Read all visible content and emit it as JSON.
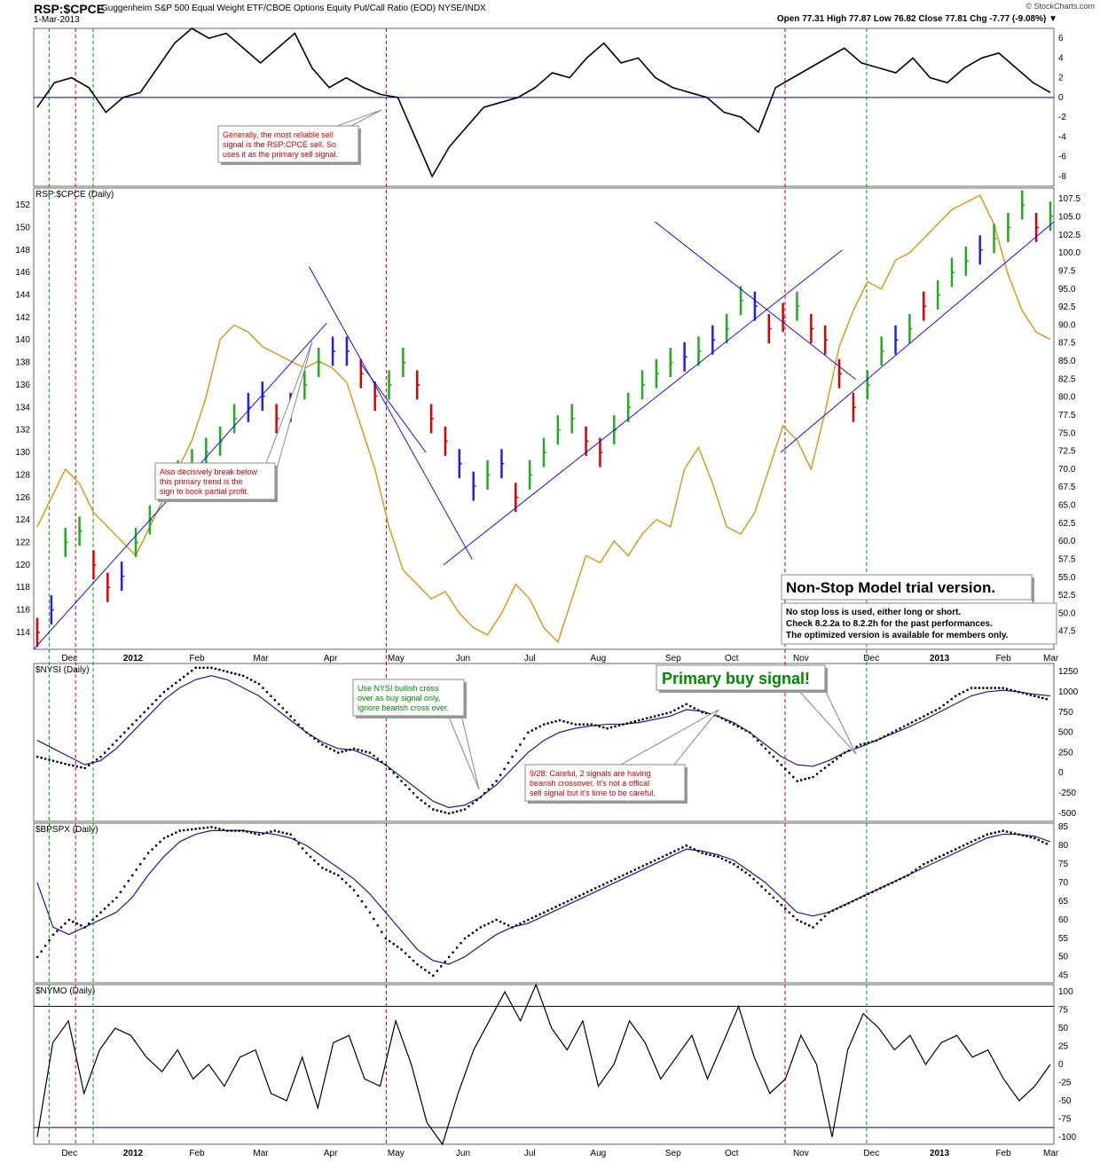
{
  "header": {
    "symbol": "RSP:$CPCE",
    "description": "Guggenheim S&P 500 Equal Weight ETF/CBOE Options Equity Put/Call Ratio (EOD)",
    "exchange": "NYSE/INDX",
    "date": "1-Mar-2013",
    "quote": "Open 77.31  High 77.87  Low 76.82  Close 77.81  Chg -7.77 (-9.08%) ▼",
    "logo": "© StockCharts.com"
  },
  "colors": {
    "up": "#22aa22",
    "down": "#dd0000",
    "neutral": "#2222dd",
    "overlay": "#d89a20",
    "trend": "#1515e0",
    "vline_red": "#cc0000",
    "vline_green": "#009900"
  },
  "x_labels": [
    "Dec",
    "2012",
    "Feb",
    "Mar",
    "Apr",
    "May",
    "Jun",
    "Jul",
    "Aug",
    "Sep",
    "Oct",
    "Nov",
    "Dec",
    "2013",
    "Feb",
    "Mar"
  ],
  "vlines": [
    {
      "color": "green",
      "date": "2011-12-01"
    },
    {
      "color": "red",
      "date": "2011-12-13"
    },
    {
      "color": "green",
      "date": "2011-12-21"
    },
    {
      "color": "red",
      "date": "2012-05-02"
    },
    {
      "color": "red",
      "date": "2012-10-30"
    },
    {
      "color": "green",
      "date": "2012-12-06"
    }
  ],
  "chart_data": [
    {
      "name": "oscillator",
      "type": "line",
      "title": "",
      "yticks": [
        6,
        4,
        2,
        0,
        -2,
        -4,
        -6,
        -8
      ],
      "ylim": [
        -9,
        7
      ],
      "zero_line": 0,
      "values": [
        -1,
        1.5,
        2,
        1,
        -1.5,
        0,
        0.5,
        3,
        5.5,
        7,
        6,
        6.5,
        5,
        3.5,
        5,
        6.5,
        3,
        1,
        2,
        1,
        0.3,
        0,
        -4,
        -8,
        -5,
        -3,
        -1,
        -0.5,
        0,
        1,
        2.5,
        2,
        4,
        5.5,
        3.5,
        4,
        2,
        1,
        0.5,
        0,
        -1.5,
        -2,
        -3.5,
        1,
        2,
        3,
        4,
        5,
        3.5,
        3,
        2.5,
        4,
        2,
        1.5,
        3,
        4,
        4.5,
        3,
        1.5,
        0.5
      ]
    },
    {
      "name": "price",
      "type": "bar",
      "title": "RSP:$CPCE (Daily)",
      "y_left_ticks": [
        152,
        150,
        148,
        146,
        144,
        142,
        140,
        138,
        136,
        134,
        132,
        130,
        128,
        126,
        124,
        122,
        120,
        118,
        116,
        114
      ],
      "y_right_ticks": [
        "107.5",
        "105.0",
        "102.5",
        "100.0",
        "97.5",
        "95.0",
        "92.5",
        "90.0",
        "87.5",
        "85.0",
        "82.5",
        "80.0",
        "77.5",
        "75.0",
        "72.5",
        "70.0",
        "67.5",
        "65.0",
        "62.5",
        "60.0",
        "57.5",
        "55.0",
        "52.5",
        "50.0",
        "47.5"
      ],
      "ylim_left": [
        112.5,
        153.5
      ],
      "ylim_right": [
        45,
        109
      ],
      "values": [
        114,
        116,
        122,
        123,
        120,
        118,
        119,
        122,
        124,
        127,
        128,
        129,
        130,
        131,
        133,
        134,
        135,
        133,
        134,
        136,
        138,
        139,
        139,
        137,
        135,
        136,
        138,
        136,
        133,
        131,
        129,
        127,
        128,
        129,
        126,
        128,
        130,
        132,
        133,
        131,
        130,
        132,
        134,
        136,
        137,
        138,
        138.5,
        139,
        140,
        141,
        143.5,
        143,
        141,
        142,
        143,
        141,
        140,
        137,
        134,
        136,
        139,
        140,
        141,
        143,
        144,
        146,
        147,
        148,
        149,
        150,
        152,
        150,
        151
      ],
      "colors": [
        "d",
        "n",
        "u",
        "u",
        "d",
        "d",
        "n",
        "u",
        "u",
        "u",
        "u",
        "u",
        "u",
        "u",
        "u",
        "n",
        "n",
        "d",
        "n",
        "u",
        "u",
        "n",
        "n",
        "d",
        "d",
        "u",
        "u",
        "d",
        "d",
        "d",
        "n",
        "n",
        "u",
        "n",
        "d",
        "u",
        "u",
        "u",
        "u",
        "d",
        "d",
        "u",
        "u",
        "u",
        "u",
        "u",
        "n",
        "u",
        "n",
        "u",
        "u",
        "n",
        "d",
        "d",
        "u",
        "d",
        "d",
        "d",
        "d",
        "u",
        "u",
        "n",
        "u",
        "d",
        "u",
        "u",
        "u",
        "n",
        "u",
        "u",
        "u",
        "d",
        "u"
      ]
    },
    {
      "name": "cpce_overlay",
      "type": "line",
      "title": "",
      "values": [
        62,
        66,
        70,
        68,
        64,
        62,
        60,
        58,
        62,
        66,
        70,
        74,
        80,
        88,
        90,
        89,
        87,
        86,
        85,
        84,
        85,
        84,
        82,
        76,
        70,
        62,
        56,
        54,
        52,
        53,
        50,
        48,
        47,
        50,
        54,
        52,
        48,
        46,
        52,
        58,
        57,
        60,
        58,
        61,
        63,
        62,
        70,
        73,
        68,
        62,
        61,
        64,
        70,
        76,
        74,
        70,
        78,
        87,
        92,
        96,
        95,
        99,
        100,
        102,
        104,
        106,
        107,
        108,
        104,
        97,
        92,
        89,
        88
      ]
    },
    {
      "name": "nysi",
      "type": "scatter",
      "title": "$NYSI (Daily)",
      "yticks": [
        1250,
        1000,
        750,
        500,
        250,
        0,
        -250,
        -500
      ],
      "ylim": [
        -600,
        1350
      ],
      "values": [
        200,
        150,
        100,
        60,
        200,
        400,
        600,
        800,
        1000,
        1150,
        1300,
        1300,
        1250,
        1200,
        1100,
        900,
        700,
        500,
        350,
        250,
        300,
        250,
        100,
        -100,
        -300,
        -450,
        -500,
        -450,
        -300,
        -100,
        200,
        500,
        600,
        650,
        600,
        600,
        550,
        600,
        650,
        700,
        750,
        850,
        750,
        700,
        600,
        500,
        300,
        100,
        -100,
        -50,
        100,
        250,
        350,
        400,
        500,
        600,
        700,
        800,
        950,
        1050,
        1050,
        1050,
        1000,
        950,
        900
      ],
      "ma": [
        400,
        300,
        200,
        100,
        150,
        300,
        500,
        700,
        900,
        1050,
        1150,
        1200,
        1150,
        1050,
        950,
        800,
        650,
        500,
        380,
        300,
        280,
        200,
        100,
        -50,
        -200,
        -350,
        -430,
        -400,
        -300,
        -150,
        50,
        250,
        400,
        500,
        550,
        580,
        600,
        600,
        620,
        660,
        700,
        780,
        760,
        700,
        620,
        500,
        350,
        200,
        100,
        80,
        150,
        250,
        320,
        400,
        480,
        560,
        650,
        750,
        850,
        950,
        1000,
        1020,
        1000,
        970,
        950
      ]
    },
    {
      "name": "bpspx",
      "type": "scatter",
      "title": "$BPSPX (Daily)",
      "yticks": [
        85,
        80,
        75,
        70,
        65,
        60,
        55,
        50,
        45
      ],
      "ylim": [
        43,
        86
      ],
      "values": [
        50,
        56,
        60,
        58,
        62,
        66,
        72,
        78,
        82,
        84,
        84.5,
        85,
        84,
        84,
        83,
        84,
        83,
        78,
        74,
        72,
        68,
        62,
        55,
        52,
        48,
        45,
        50,
        55,
        58,
        60,
        58,
        60,
        62,
        64,
        66,
        68,
        70,
        72,
        74,
        76,
        78,
        80,
        78,
        77,
        75,
        72,
        68,
        64,
        60,
        58,
        62,
        64,
        66,
        68,
        70,
        72,
        75,
        77,
        79,
        81,
        83,
        84,
        83,
        82,
        80
      ],
      "ma": [
        70,
        58,
        56,
        58,
        60,
        62,
        66,
        72,
        77,
        81,
        83,
        84,
        84,
        84,
        83.5,
        83,
        82,
        80,
        77,
        74,
        71,
        67,
        62,
        57,
        52,
        49,
        48,
        50,
        53,
        56,
        58,
        59,
        61,
        63,
        65,
        67,
        69,
        71,
        73,
        75,
        77,
        79,
        78.5,
        77.5,
        76,
        73,
        70,
        66,
        62,
        61,
        62,
        64,
        66,
        68,
        70,
        72,
        74,
        76,
        78,
        80,
        82,
        83,
        83,
        82.5,
        81
      ]
    },
    {
      "name": "nymo",
      "type": "line",
      "title": "$NYMO (Daily)",
      "yticks": [
        100,
        75,
        50,
        25,
        0,
        -25,
        -50,
        -75,
        -100
      ],
      "ylim": [
        -110,
        110
      ],
      "hlines": [
        80,
        -87
      ],
      "values": [
        -100,
        30,
        60,
        -40,
        20,
        50,
        40,
        10,
        -10,
        20,
        -20,
        0,
        -30,
        10,
        20,
        -40,
        -50,
        10,
        -60,
        30,
        40,
        -20,
        -30,
        60,
        0,
        -80,
        -110,
        -40,
        20,
        60,
        100,
        60,
        110,
        50,
        20,
        60,
        -30,
        0,
        60,
        30,
        -20,
        10,
        40,
        -20,
        30,
        80,
        10,
        -40,
        -20,
        40,
        0,
        -100,
        20,
        70,
        50,
        20,
        40,
        0,
        30,
        40,
        10,
        20,
        -20,
        -50,
        -30,
        0
      ]
    }
  ],
  "annotations": {
    "sell_note": {
      "lines": [
        "Generally, the most reliable sell",
        "signal is the RSP:CPCE sell. So",
        "uses it as the primary sell signal."
      ]
    },
    "break_note": {
      "lines": [
        "Also decisively break below",
        "this primary trend is the",
        "sign to book partial profit."
      ]
    },
    "nysi_note": {
      "lines": [
        "Use NYSI bullish cross",
        "over as buy signal only,",
        "ignore bearish cross over."
      ]
    },
    "careful_note": {
      "lines": [
        "9/28: Careful, 2 signals are having",
        "bearish crossover. It's not a offical",
        "sell signal but it's time to be careful."
      ]
    },
    "buy_signal": "Primary buy signal!",
    "model_title": "Non-Stop Model trial version.",
    "model_lines": [
      "No stop loss is used, either long or short.",
      "Check 8.2.2a to 8.2.2h for the past performances.",
      "The optimized version is available for members only."
    ]
  }
}
